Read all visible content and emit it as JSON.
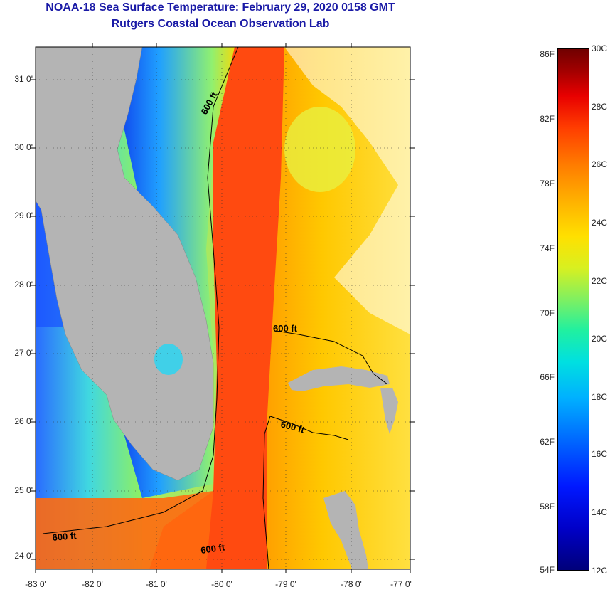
{
  "title": {
    "line1": "NOAA-18 Sea Surface Temperature:  February 29, 2020 0158 GMT",
    "line2": "Rutgers Coastal Ocean Observation Lab"
  },
  "map": {
    "lat_labels": [
      "31 0'",
      "30 0'",
      "29 0'",
      "28 0'",
      "27 0'",
      "26 0'",
      "25 0'",
      "24 0'"
    ],
    "lon_labels": [
      "-83 0'",
      "-82 0'",
      "-81 0'",
      "-80 0'",
      "-79 0'",
      "-78 0'",
      "-77 0'"
    ],
    "isobath_labels": [
      "600 ft",
      "600 ft",
      "600 ft",
      "600 ft",
      "600 ft"
    ],
    "colors": {
      "land": "#b4b4b4",
      "gulf_stream": "#ff4a10",
      "cool_water": "#1e50ff",
      "warm_water": "#ffa800"
    }
  },
  "colorbar": {
    "fahrenheit": [
      "86F",
      "82F",
      "78F",
      "74F",
      "70F",
      "66F",
      "62F",
      "58F",
      "54F"
    ],
    "celsius": [
      "30C",
      "28C",
      "26C",
      "24C",
      "22C",
      "20C",
      "18C",
      "16C",
      "14C",
      "12C"
    ]
  }
}
